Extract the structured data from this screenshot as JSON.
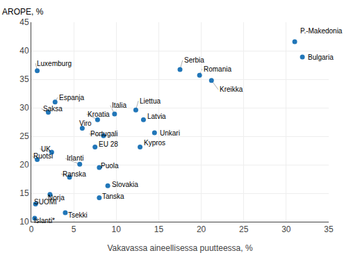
{
  "chart_data": {
    "type": "scatter",
    "xlabel": "Vakavassa aineellisessa puutteessa, %",
    "ylabel": "AROPE, %",
    "color": "#2176b8",
    "points": [
      {
        "name": "P.-Makedonia",
        "x": 31.0,
        "y": 41.6,
        "label_x": 31.5,
        "label_y": 43.5,
        "leader": false
      },
      {
        "name": "Bulgaria",
        "x": 31.9,
        "y": 38.9,
        "label_x": 32.4,
        "label_y": 38.9,
        "leader": false
      },
      {
        "name": "Serbia",
        "x": 17.5,
        "y": 36.7,
        "label_x": 17.8,
        "label_y": 38.3,
        "leader": true
      },
      {
        "name": "Romania",
        "x": 19.8,
        "y": 35.7,
        "label_x": 20.1,
        "label_y": 36.8,
        "leader": true
      },
      {
        "name": "Kreikka",
        "x": 21.2,
        "y": 34.8,
        "label_x": 22.0,
        "label_y": 33.2,
        "leader": true
      },
      {
        "name": "Liettua",
        "x": 12.3,
        "y": 29.6,
        "label_x": 12.6,
        "label_y": 31.2,
        "leader": true
      },
      {
        "name": "Italia",
        "x": 9.8,
        "y": 28.9,
        "label_x": 9.3,
        "label_y": 30.4,
        "leader": true
      },
      {
        "name": "Latvia",
        "x": 13.2,
        "y": 27.9,
        "label_x": 13.5,
        "label_y": 28.5,
        "leader": false
      },
      {
        "name": "Kroatia",
        "x": 7.8,
        "y": 27.9,
        "label_x": 6.5,
        "label_y": 28.9,
        "leader": true
      },
      {
        "name": "Viro",
        "x": 6.0,
        "y": 26.4,
        "label_x": 5.5,
        "label_y": 27.2,
        "leader": false
      },
      {
        "name": "Unkari",
        "x": 14.5,
        "y": 25.6,
        "label_x": 15.0,
        "label_y": 25.6,
        "leader": false
      },
      {
        "name": "Portugali",
        "x": 8.5,
        "y": 25.1,
        "label_x": 6.8,
        "label_y": 25.4,
        "leader": true
      },
      {
        "name": "Kypros",
        "x": 12.8,
        "y": 23.1,
        "label_x": 13.1,
        "label_y": 23.8,
        "leader": false
      },
      {
        "name": "EU 28",
        "x": 7.5,
        "y": 23.1,
        "label_x": 7.8,
        "label_y": 23.6,
        "leader": false
      },
      {
        "name": "Espanja",
        "x": 2.8,
        "y": 31.0,
        "label_x": 3.1,
        "label_y": 31.8,
        "leader": true
      },
      {
        "name": "Saksa",
        "x": 2.0,
        "y": 29.2,
        "label_x": 1.2,
        "label_y": 29.8,
        "leader": true
      },
      {
        "name": "Luxemburg",
        "x": 0.7,
        "y": 36.5,
        "label_x": 0.5,
        "label_y": 37.8,
        "leader": true
      },
      {
        "name": "UK",
        "x": 2.4,
        "y": 22.2,
        "label_x": 1.0,
        "label_y": 22.8,
        "leader": true
      },
      {
        "name": "Ruotsi",
        "x": 0.7,
        "y": 20.9,
        "label_x": 0.1,
        "label_y": 21.5,
        "leader": true
      },
      {
        "name": "Irlanti",
        "x": 5.7,
        "y": 20.1,
        "label_x": 4.0,
        "label_y": 21.1,
        "leader": true
      },
      {
        "name": "Puola",
        "x": 8.0,
        "y": 19.5,
        "label_x": 8.0,
        "label_y": 19.8,
        "leader": false
      },
      {
        "name": "Ranska",
        "x": 4.5,
        "y": 17.8,
        "label_x": 3.5,
        "label_y": 18.4,
        "leader": true
      },
      {
        "name": "Slovakia",
        "x": 9.0,
        "y": 16.3,
        "label_x": 9.3,
        "label_y": 16.5,
        "leader": false
      },
      {
        "name": "Tanska",
        "x": 8.0,
        "y": 14.2,
        "label_x": 8.2,
        "label_y": 14.5,
        "leader": false
      },
      {
        "name": "Norja",
        "x": 2.2,
        "y": 14.8,
        "label_x": 1.8,
        "label_y": 14.2,
        "leader": true
      },
      {
        "name": "SUOMI",
        "x": 0.5,
        "y": 13.1,
        "label_x": 0.2,
        "label_y": 13.5,
        "leader": false
      },
      {
        "name": "Tsekki",
        "x": 4.0,
        "y": 11.6,
        "label_x": 4.2,
        "label_y": 11.2,
        "leader": false
      },
      {
        "name": "Islanti*",
        "x": 0.4,
        "y": 10.6,
        "label_x": 0.2,
        "label_y": 10.2,
        "leader": false
      }
    ],
    "xlim": [
      0,
      35
    ],
    "ylim": [
      10,
      45
    ],
    "xticks": [
      0,
      5,
      10,
      15,
      20,
      25,
      30,
      35
    ],
    "yticks": [
      10,
      15,
      20,
      25,
      30,
      35,
      40,
      45
    ],
    "grid": true
  }
}
